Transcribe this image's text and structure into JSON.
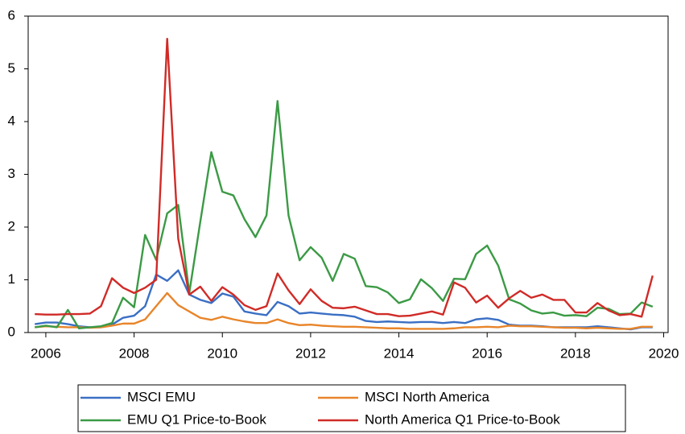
{
  "chart_data": {
    "type": "line",
    "x": [
      2005.75,
      2006,
      2006.25,
      2006.5,
      2006.75,
      2007,
      2007.25,
      2007.5,
      2007.75,
      2008,
      2008.25,
      2008.5,
      2008.75,
      2009,
      2009.25,
      2009.5,
      2009.75,
      2010,
      2010.25,
      2010.5,
      2010.75,
      2011,
      2011.25,
      2011.5,
      2011.75,
      2012,
      2012.25,
      2012.5,
      2012.75,
      2013,
      2013.25,
      2013.5,
      2013.75,
      2014,
      2014.25,
      2014.5,
      2014.75,
      2015,
      2015.25,
      2015.5,
      2015.75,
      2016,
      2016.25,
      2016.5,
      2016.75,
      2017,
      2017.25,
      2017.5,
      2017.75,
      2018,
      2018.25,
      2018.5,
      2018.75,
      2019,
      2019.25,
      2019.5,
      2019.75
    ],
    "series": [
      {
        "name": "MSCI EMU",
        "color": "#3a6fc4",
        "values": [
          0.16,
          0.19,
          0.19,
          0.16,
          0.12,
          0.1,
          0.1,
          0.15,
          0.28,
          0.32,
          0.5,
          1.1,
          0.98,
          1.18,
          0.72,
          0.62,
          0.56,
          0.74,
          0.68,
          0.4,
          0.36,
          0.33,
          0.58,
          0.5,
          0.36,
          0.38,
          0.36,
          0.34,
          0.33,
          0.3,
          0.22,
          0.2,
          0.21,
          0.2,
          0.19,
          0.2,
          0.2,
          0.18,
          0.2,
          0.18,
          0.25,
          0.27,
          0.24,
          0.15,
          0.13,
          0.13,
          0.12,
          0.1,
          0.1,
          0.1,
          0.1,
          0.12,
          0.1,
          0.08,
          0.06,
          0.1,
          0.1
        ]
      },
      {
        "name": "MSCI North America",
        "color": "#e8852a",
        "values": [
          0.1,
          0.12,
          0.11,
          0.1,
          0.1,
          0.09,
          0.1,
          0.13,
          0.17,
          0.17,
          0.25,
          0.5,
          0.75,
          0.52,
          0.4,
          0.28,
          0.24,
          0.3,
          0.25,
          0.21,
          0.18,
          0.18,
          0.25,
          0.18,
          0.14,
          0.15,
          0.13,
          0.12,
          0.11,
          0.11,
          0.1,
          0.09,
          0.08,
          0.08,
          0.07,
          0.07,
          0.07,
          0.07,
          0.08,
          0.1,
          0.1,
          0.11,
          0.1,
          0.13,
          0.12,
          0.12,
          0.11,
          0.1,
          0.09,
          0.09,
          0.08,
          0.09,
          0.08,
          0.07,
          0.07,
          0.11,
          0.11
        ]
      },
      {
        "name": "EMU Q1 Price-to-Book",
        "color": "#3b9a45",
        "values": [
          0.1,
          0.13,
          0.1,
          0.43,
          0.08,
          0.1,
          0.12,
          0.18,
          0.66,
          0.48,
          1.85,
          1.38,
          2.26,
          2.42,
          0.75,
          2.1,
          3.42,
          2.67,
          2.6,
          2.15,
          1.81,
          2.22,
          4.39,
          2.22,
          1.37,
          1.62,
          1.42,
          0.98,
          1.49,
          1.4,
          0.88,
          0.86,
          0.76,
          0.56,
          0.63,
          1.01,
          0.84,
          0.6,
          1.02,
          1.01,
          1.49,
          1.65,
          1.27,
          0.63,
          0.55,
          0.42,
          0.36,
          0.38,
          0.32,
          0.33,
          0.31,
          0.47,
          0.45,
          0.35,
          0.36,
          0.57,
          0.49
        ]
      },
      {
        "name": "North America Q1 Price-to-Book",
        "color": "#d02b27",
        "values": [
          0.35,
          0.34,
          0.34,
          0.35,
          0.35,
          0.36,
          0.5,
          1.03,
          0.85,
          0.75,
          0.85,
          1.0,
          5.57,
          1.78,
          0.72,
          0.87,
          0.6,
          0.86,
          0.72,
          0.52,
          0.43,
          0.5,
          1.12,
          0.8,
          0.54,
          0.82,
          0.6,
          0.47,
          0.46,
          0.49,
          0.42,
          0.35,
          0.35,
          0.31,
          0.32,
          0.36,
          0.4,
          0.34,
          0.95,
          0.85,
          0.57,
          0.7,
          0.47,
          0.65,
          0.79,
          0.66,
          0.72,
          0.62,
          0.62,
          0.38,
          0.38,
          0.56,
          0.42,
          0.33,
          0.35,
          0.3,
          1.08
        ]
      }
    ],
    "xlim": [
      2005.6,
      2020.1
    ],
    "xticks": [
      2006,
      2008,
      2010,
      2012,
      2014,
      2016,
      2018,
      2020
    ],
    "ylim": [
      0,
      6
    ],
    "yticks": [
      0,
      1,
      2,
      3,
      4,
      5,
      6
    ]
  }
}
